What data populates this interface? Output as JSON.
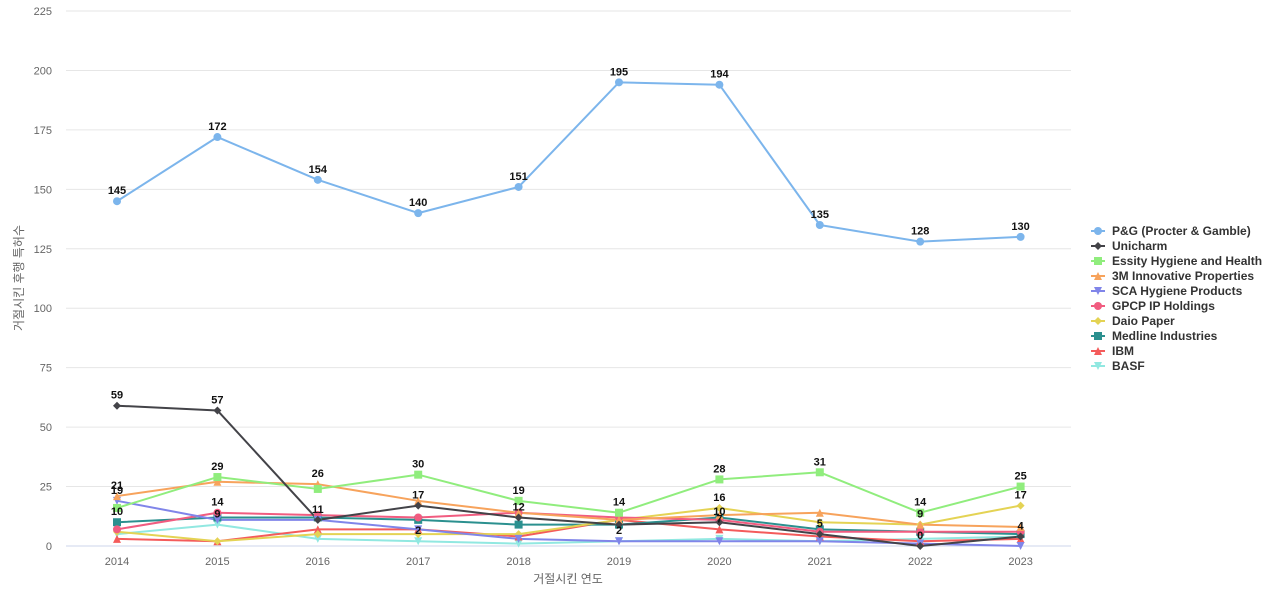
{
  "chart_data": {
    "type": "line",
    "title": "",
    "xlabel": "거절시킨 연도",
    "ylabel": "거절시킨 후행 특허수",
    "ylim": [
      0,
      225
    ],
    "yticks": [
      0,
      25,
      50,
      75,
      100,
      125,
      150,
      175,
      200,
      225
    ],
    "grid": true,
    "legend_position": "right",
    "categories": [
      "2014",
      "2015",
      "2016",
      "2017",
      "2018",
      "2019",
      "2020",
      "2021",
      "2022",
      "2023"
    ],
    "series": [
      {
        "name": "P&G (Procter & Gamble)",
        "color": "#7cb5ec",
        "marker": "circle",
        "values": [
          145,
          172,
          154,
          140,
          151,
          195,
          194,
          135,
          128,
          130
        ]
      },
      {
        "name": "Unicharm",
        "color": "#434348",
        "marker": "diamond",
        "values": [
          59,
          57,
          11,
          17,
          12,
          9,
          10,
          5,
          0,
          4
        ]
      },
      {
        "name": "Essity Hygiene and Health",
        "color": "#90ed7d",
        "marker": "square",
        "values": [
          16,
          29,
          24,
          30,
          19,
          14,
          28,
          31,
          14,
          25
        ]
      },
      {
        "name": "3M Innovative Properties",
        "color": "#f7a35c",
        "marker": "triangle",
        "values": [
          21,
          27,
          26,
          19,
          14,
          11,
          13,
          14,
          9,
          8
        ]
      },
      {
        "name": "SCA Hygiene Products",
        "color": "#8085e9",
        "marker": "triangle-down",
        "values": [
          19,
          11,
          11,
          7,
          3,
          2,
          2,
          2,
          1,
          0
        ]
      },
      {
        "name": "GPCP IP Holdings",
        "color": "#f15c80",
        "marker": "circle",
        "values": [
          7,
          14,
          13,
          12,
          14,
          12,
          11,
          6,
          6,
          6
        ]
      },
      {
        "name": "Daio Paper",
        "color": "#e4d354",
        "marker": "diamond",
        "values": [
          6,
          2,
          5,
          5,
          5,
          11,
          16,
          10,
          9,
          17
        ]
      },
      {
        "name": "Medline Industries",
        "color": "#2b908f",
        "marker": "square",
        "values": [
          10,
          12,
          12,
          11,
          9,
          9,
          12,
          7,
          6,
          5
        ]
      },
      {
        "name": "IBM",
        "color": "#f45b5b",
        "marker": "triangle",
        "values": [
          3,
          2,
          7,
          7,
          4,
          11,
          7,
          4,
          2,
          3
        ]
      },
      {
        "name": "BASF",
        "color": "#91e8e1",
        "marker": "triangle-down",
        "values": [
          5,
          9,
          3,
          2,
          1,
          2,
          3,
          2,
          3,
          4
        ]
      }
    ],
    "data_labels": [
      {
        "series": 0,
        "points": [
          0,
          1,
          2,
          3,
          4,
          5,
          6,
          7,
          8,
          9
        ]
      },
      {
        "series": 1,
        "points": [
          0,
          1,
          2,
          3,
          4,
          6,
          7,
          8,
          9
        ]
      },
      {
        "series": 2,
        "points": [
          1,
          3,
          4,
          5,
          6,
          7,
          8,
          9
        ]
      },
      {
        "series": 3,
        "points": [
          0,
          2
        ]
      },
      {
        "series": 4,
        "points": [
          0
        ]
      },
      {
        "series": 5,
        "points": [
          1
        ]
      },
      {
        "series": 6,
        "points": [
          6,
          8,
          9
        ]
      },
      {
        "series": 7,
        "points": [
          0
        ]
      },
      {
        "series": 8,
        "points": [
          6
        ]
      },
      {
        "series": 9,
        "points": [
          1,
          3,
          5
        ]
      }
    ]
  }
}
